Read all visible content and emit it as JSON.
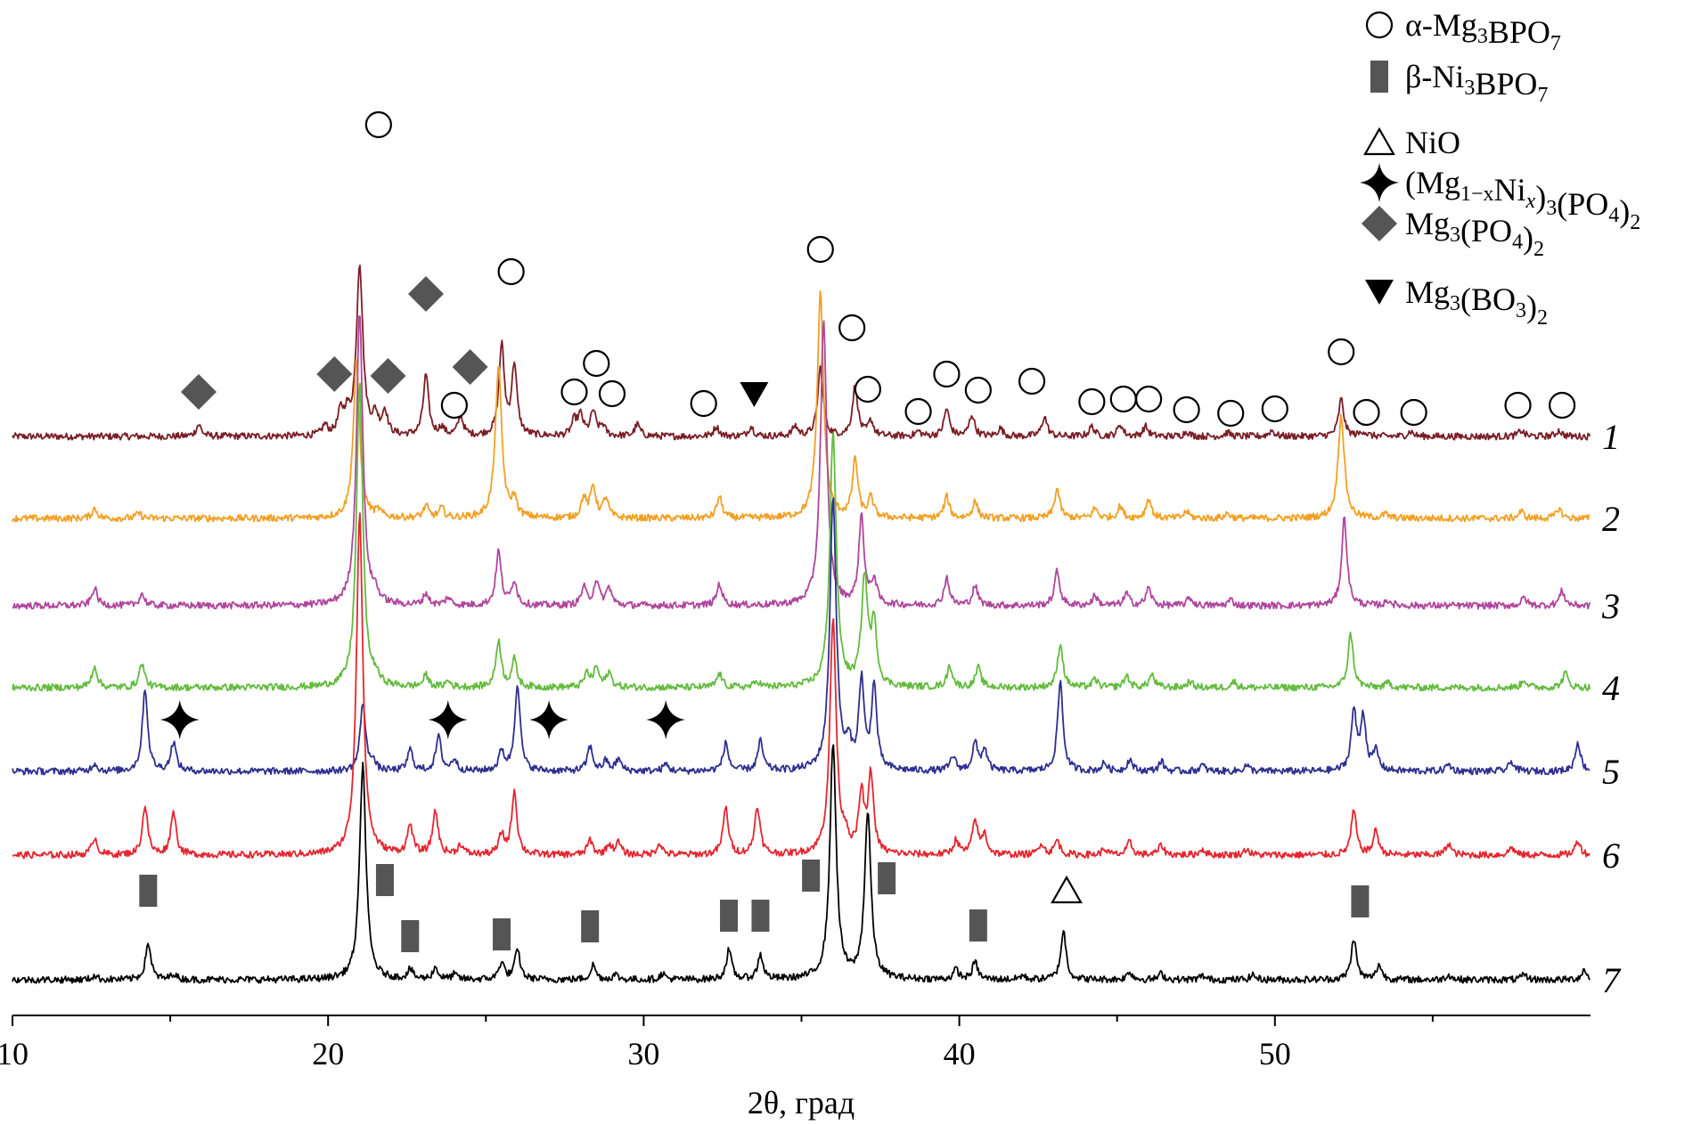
{
  "chart_data": {
    "type": "line",
    "xlabel": "2θ, град",
    "ylabel": "",
    "xlim": [
      10,
      60
    ],
    "xticks": [
      "10",
      "20",
      "30",
      "40",
      "50"
    ],
    "grid": false,
    "legend_position": "top-right",
    "legend": [
      {
        "marker": "circle-open",
        "label": "α-Mg3BPO7",
        "parts": [
          [
            "α-Mg",
            ""
          ],
          [
            "3",
            "sub"
          ],
          [
            "BPO",
            ""
          ],
          [
            "7",
            "sub"
          ]
        ]
      },
      {
        "marker": "rect-filled",
        "label": "β-Ni3BPO7",
        "parts": [
          [
            "β-Ni",
            ""
          ],
          [
            "3",
            "sub"
          ],
          [
            "BPO",
            ""
          ],
          [
            "7",
            "sub"
          ]
        ]
      },
      {
        "marker": "triangle-up-open",
        "label": "NiO",
        "parts": [
          [
            "NiO",
            ""
          ]
        ]
      },
      {
        "marker": "star4-filled",
        "label": "(Mg1−xNix)3(PO4)2",
        "parts": [
          [
            "(Mg",
            ""
          ],
          [
            "1−x",
            "sub"
          ],
          [
            "Ni",
            ""
          ],
          [
            "x",
            "subi"
          ],
          [
            ")",
            ""
          ],
          [
            "3",
            "sub"
          ],
          [
            "(PO",
            ""
          ],
          [
            "4",
            "sub"
          ],
          [
            ")",
            ""
          ],
          [
            "2",
            "sub"
          ]
        ]
      },
      {
        "marker": "diamond-filled",
        "label": "Mg3(PO4)2",
        "parts": [
          [
            "Mg",
            ""
          ],
          [
            "3",
            "sub"
          ],
          [
            "(PO",
            ""
          ],
          [
            "4",
            "sub"
          ],
          [
            ")",
            ""
          ],
          [
            "2",
            "sub"
          ]
        ]
      },
      {
        "marker": "triangle-down-filled",
        "label": "Mg3(BO3)2",
        "parts": [
          [
            "Mg",
            ""
          ],
          [
            "3",
            "sub"
          ],
          [
            "(BO",
            ""
          ],
          [
            "3",
            "sub"
          ],
          [
            ")",
            ""
          ],
          [
            "2",
            "sub"
          ]
        ]
      }
    ],
    "series": [
      {
        "name": "1",
        "color": "#7a1e26",
        "peaks": [
          [
            15.9,
            0.12
          ],
          [
            19.9,
            0.1
          ],
          [
            20.4,
            0.22
          ],
          [
            20.6,
            0.18
          ],
          [
            21.0,
            1.75
          ],
          [
            21.5,
            0.18
          ],
          [
            21.8,
            0.24
          ],
          [
            23.1,
            0.62
          ],
          [
            23.6,
            0.08
          ],
          [
            24.2,
            0.2
          ],
          [
            25.5,
            0.92
          ],
          [
            25.9,
            0.72
          ],
          [
            27.8,
            0.15
          ],
          [
            28.0,
            0.2
          ],
          [
            28.4,
            0.25
          ],
          [
            28.7,
            0.1
          ],
          [
            29.8,
            0.12
          ],
          [
            32.3,
            0.1
          ],
          [
            33.4,
            0.1
          ],
          [
            34.8,
            0.1
          ],
          [
            35.6,
            0.7
          ],
          [
            36.7,
            0.52
          ],
          [
            37.2,
            0.15
          ],
          [
            38.7,
            0.05
          ],
          [
            39.6,
            0.28
          ],
          [
            40.4,
            0.22
          ],
          [
            41.3,
            0.08
          ],
          [
            42.7,
            0.2
          ],
          [
            44.2,
            0.1
          ],
          [
            45.1,
            0.12
          ],
          [
            45.9,
            0.1
          ],
          [
            47.2,
            0.05
          ],
          [
            48.5,
            0.04
          ],
          [
            49.9,
            0.06
          ],
          [
            52.1,
            0.38
          ],
          [
            52.8,
            0.05
          ],
          [
            54.3,
            0.05
          ],
          [
            57.8,
            0.06
          ],
          [
            59.0,
            0.06
          ]
        ]
      },
      {
        "name": "2",
        "color": "#f2a024",
        "peaks": [
          [
            12.6,
            0.1
          ],
          [
            14.0,
            0.05
          ],
          [
            20.9,
            1.6
          ],
          [
            21.6,
            0.06
          ],
          [
            23.1,
            0.12
          ],
          [
            23.6,
            0.1
          ],
          [
            25.4,
            1.55
          ],
          [
            25.9,
            0.18
          ],
          [
            28.1,
            0.2
          ],
          [
            28.4,
            0.32
          ],
          [
            28.8,
            0.2
          ],
          [
            32.4,
            0.22
          ],
          [
            35.6,
            2.3
          ],
          [
            36.7,
            0.6
          ],
          [
            37.2,
            0.2
          ],
          [
            39.6,
            0.22
          ],
          [
            40.5,
            0.17
          ],
          [
            43.1,
            0.3
          ],
          [
            44.3,
            0.1
          ],
          [
            45.1,
            0.12
          ],
          [
            46.0,
            0.2
          ],
          [
            47.2,
            0.07
          ],
          [
            48.5,
            0.05
          ],
          [
            52.1,
            1.05
          ],
          [
            53.5,
            0.04
          ],
          [
            57.8,
            0.07
          ],
          [
            59.0,
            0.1
          ]
        ]
      },
      {
        "name": "3",
        "color": "#b0469d",
        "peaks": [
          [
            12.6,
            0.18
          ],
          [
            14.1,
            0.12
          ],
          [
            21.0,
            3.0
          ],
          [
            21.5,
            0.1
          ],
          [
            23.1,
            0.12
          ],
          [
            23.8,
            0.08
          ],
          [
            25.4,
            0.55
          ],
          [
            25.9,
            0.25
          ],
          [
            28.1,
            0.18
          ],
          [
            28.5,
            0.25
          ],
          [
            28.9,
            0.18
          ],
          [
            32.4,
            0.22
          ],
          [
            35.7,
            2.9
          ],
          [
            36.9,
            0.9
          ],
          [
            37.3,
            0.25
          ],
          [
            39.6,
            0.28
          ],
          [
            40.5,
            0.2
          ],
          [
            43.1,
            0.35
          ],
          [
            44.3,
            0.1
          ],
          [
            45.3,
            0.12
          ],
          [
            46.0,
            0.18
          ],
          [
            47.3,
            0.08
          ],
          [
            48.6,
            0.06
          ],
          [
            52.2,
            0.9
          ],
          [
            53.6,
            0.05
          ],
          [
            57.9,
            0.08
          ],
          [
            59.1,
            0.15
          ]
        ]
      },
      {
        "name": "4",
        "color": "#63bb3e",
        "peaks": [
          [
            12.6,
            0.22
          ],
          [
            14.1,
            0.25
          ],
          [
            21.0,
            3.1
          ],
          [
            21.5,
            0.08
          ],
          [
            23.1,
            0.12
          ],
          [
            23.8,
            0.06
          ],
          [
            25.4,
            0.48
          ],
          [
            25.9,
            0.28
          ],
          [
            28.2,
            0.14
          ],
          [
            28.5,
            0.2
          ],
          [
            28.9,
            0.15
          ],
          [
            32.4,
            0.14
          ],
          [
            33.6,
            0.06
          ],
          [
            36.0,
            2.6
          ],
          [
            37.0,
            1.1
          ],
          [
            37.3,
            0.6
          ],
          [
            39.7,
            0.22
          ],
          [
            40.6,
            0.2
          ],
          [
            43.2,
            0.45
          ],
          [
            44.3,
            0.08
          ],
          [
            45.3,
            0.12
          ],
          [
            46.1,
            0.13
          ],
          [
            47.3,
            0.06
          ],
          [
            48.7,
            0.06
          ],
          [
            52.4,
            0.55
          ],
          [
            53.6,
            0.05
          ],
          [
            57.9,
            0.08
          ],
          [
            59.2,
            0.15
          ]
        ]
      },
      {
        "name": "5",
        "color": "#2e2f8f",
        "peaks": [
          [
            12.6,
            0.08
          ],
          [
            14.2,
            0.85
          ],
          [
            15.1,
            0.3
          ],
          [
            21.1,
            0.7
          ],
          [
            21.4,
            0.1
          ],
          [
            22.6,
            0.22
          ],
          [
            23.5,
            0.35
          ],
          [
            24.0,
            0.12
          ],
          [
            25.5,
            0.2
          ],
          [
            26.0,
            0.9
          ],
          [
            28.3,
            0.25
          ],
          [
            28.8,
            0.1
          ],
          [
            29.2,
            0.12
          ],
          [
            30.7,
            0.07
          ],
          [
            32.6,
            0.28
          ],
          [
            33.7,
            0.3
          ],
          [
            36.0,
            2.8
          ],
          [
            36.5,
            0.22
          ],
          [
            36.9,
            0.9
          ],
          [
            37.3,
            0.85
          ],
          [
            39.8,
            0.15
          ],
          [
            40.5,
            0.28
          ],
          [
            40.8,
            0.22
          ],
          [
            43.2,
            0.92
          ],
          [
            44.6,
            0.08
          ],
          [
            45.4,
            0.12
          ],
          [
            46.4,
            0.1
          ],
          [
            47.7,
            0.06
          ],
          [
            49.1,
            0.06
          ],
          [
            52.5,
            0.6
          ],
          [
            52.8,
            0.55
          ],
          [
            53.2,
            0.2
          ],
          [
            55.5,
            0.07
          ],
          [
            57.5,
            0.1
          ],
          [
            59.6,
            0.3
          ]
        ]
      },
      {
        "name": "6",
        "color": "#e4262f",
        "peaks": [
          [
            12.6,
            0.18
          ],
          [
            14.2,
            0.5
          ],
          [
            15.1,
            0.45
          ],
          [
            21.0,
            3.5
          ],
          [
            22.6,
            0.3
          ],
          [
            23.4,
            0.45
          ],
          [
            24.2,
            0.1
          ],
          [
            25.5,
            0.2
          ],
          [
            25.9,
            0.65
          ],
          [
            28.3,
            0.15
          ],
          [
            28.9,
            0.1
          ],
          [
            29.2,
            0.12
          ],
          [
            30.5,
            0.12
          ],
          [
            32.6,
            0.48
          ],
          [
            33.6,
            0.5
          ],
          [
            36.0,
            2.4
          ],
          [
            36.4,
            0.15
          ],
          [
            36.9,
            0.6
          ],
          [
            37.2,
            0.8
          ],
          [
            39.9,
            0.15
          ],
          [
            40.5,
            0.35
          ],
          [
            40.8,
            0.2
          ],
          [
            42.6,
            0.12
          ],
          [
            43.1,
            0.15
          ],
          [
            44.6,
            0.06
          ],
          [
            45.4,
            0.13
          ],
          [
            46.4,
            0.1
          ],
          [
            47.7,
            0.06
          ],
          [
            49.1,
            0.06
          ],
          [
            52.5,
            0.45
          ],
          [
            53.2,
            0.25
          ],
          [
            55.5,
            0.12
          ],
          [
            57.5,
            0.08
          ],
          [
            59.6,
            0.15
          ]
        ]
      },
      {
        "name": "7",
        "color": "#000000",
        "peaks": [
          [
            12.6,
            0.04
          ],
          [
            14.3,
            0.38
          ],
          [
            15.1,
            0.06
          ],
          [
            21.1,
            2.2
          ],
          [
            22.6,
            0.1
          ],
          [
            23.4,
            0.12
          ],
          [
            24.0,
            0.05
          ],
          [
            25.5,
            0.18
          ],
          [
            26.0,
            0.3
          ],
          [
            28.4,
            0.15
          ],
          [
            29.1,
            0.05
          ],
          [
            30.6,
            0.06
          ],
          [
            32.7,
            0.3
          ],
          [
            33.7,
            0.25
          ],
          [
            36.0,
            2.4
          ],
          [
            37.1,
            1.7
          ],
          [
            39.9,
            0.1
          ],
          [
            40.5,
            0.18
          ],
          [
            42.0,
            0.04
          ],
          [
            43.3,
            0.5
          ],
          [
            45.4,
            0.08
          ],
          [
            46.4,
            0.06
          ],
          [
            47.7,
            0.04
          ],
          [
            49.3,
            0.05
          ],
          [
            52.5,
            0.42
          ],
          [
            53.3,
            0.15
          ],
          [
            55.5,
            0.05
          ],
          [
            57.9,
            0.05
          ],
          [
            59.8,
            0.1
          ]
        ]
      }
    ],
    "markers": [
      {
        "type": "diamond-filled",
        "x": [
          15.9,
          20.2,
          21.9,
          23.1,
          24.5
        ]
      },
      {
        "type": "circle-open",
        "x": [
          21.6,
          24.0,
          25.8,
          27.8,
          28.5,
          29.0,
          31.9,
          35.6,
          36.6,
          37.1,
          38.7,
          39.6,
          40.6,
          42.3,
          44.2,
          45.2,
          46.0,
          47.2,
          48.6,
          50.0,
          52.1,
          52.9,
          54.4,
          57.7,
          59.1
        ]
      },
      {
        "type": "triangle-down-filled",
        "x": [
          33.5
        ]
      },
      {
        "type": "star4-filled",
        "x": [
          15.3,
          23.8,
          27.0,
          30.7
        ]
      },
      {
        "type": "rect-filled",
        "x": [
          14.3,
          21.8,
          22.6,
          25.5,
          28.3,
          32.7,
          33.7,
          35.3,
          37.7,
          40.6,
          52.7
        ]
      },
      {
        "type": "triangle-up-open",
        "x": [
          43.4
        ]
      }
    ]
  }
}
